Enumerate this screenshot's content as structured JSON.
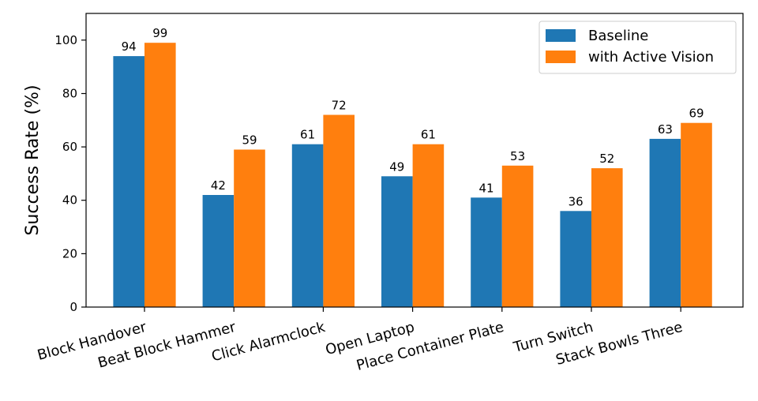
{
  "chart_data": {
    "type": "bar",
    "title": "",
    "xlabel": "",
    "ylabel": "Success Rate (%)",
    "ylim": [
      0,
      110
    ],
    "yticks": [
      0,
      20,
      40,
      60,
      80,
      100
    ],
    "grid": false,
    "legend_position": "top-right",
    "categories": [
      "Block Handover",
      "Beat Block Hammer",
      "Click Alarmclock",
      "Open Laptop",
      "Place Container Plate",
      "Turn Switch",
      "Stack Bowls Three"
    ],
    "series": [
      {
        "name": "Baseline",
        "color": "#1f77b4",
        "values": [
          94,
          42,
          61,
          49,
          41,
          36,
          63
        ]
      },
      {
        "name": "with Active Vision",
        "color": "#ff7f0e",
        "values": [
          99,
          59,
          72,
          61,
          53,
          52,
          69
        ]
      }
    ]
  }
}
